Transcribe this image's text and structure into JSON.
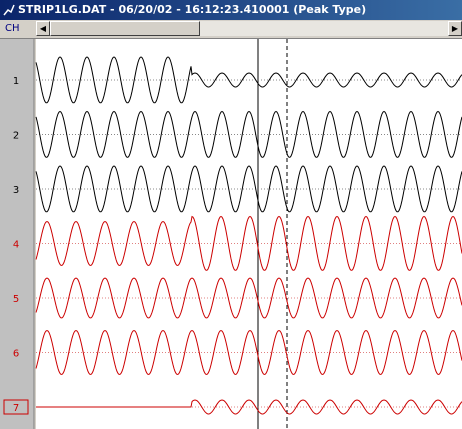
{
  "window": {
    "title": "STRIP1LG.DAT - 06/20/02 - 16:12:23.410001 (Peak Type)",
    "toolbar_label": "CH"
  },
  "channels": [
    {
      "label": "1",
      "color": "#000000"
    },
    {
      "label": "2",
      "color": "#000000"
    },
    {
      "label": "3",
      "color": "#000000"
    },
    {
      "label": "4",
      "color": "#cc0000"
    },
    {
      "label": "5",
      "color": "#cc0000"
    },
    {
      "label": "6",
      "color": "#cc0000"
    },
    {
      "label": "7",
      "color": "#cc0000"
    }
  ]
}
